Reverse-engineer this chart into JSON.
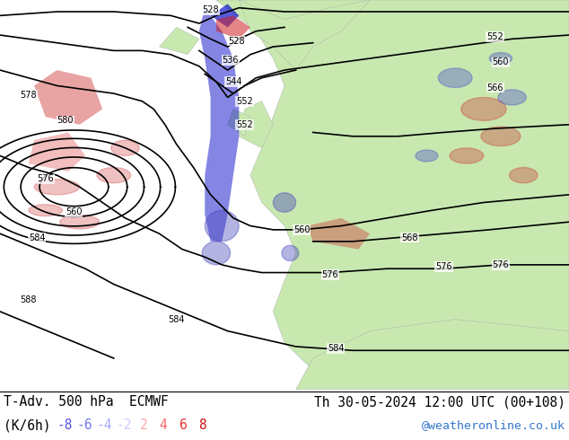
{
  "title_left": "T-Adv. 500 hPa  ECMWF",
  "title_right": "Th 30-05-2024 12:00 UTC (00+108)",
  "subtitle_left": "(K/6h)",
  "legend_values": [
    "-8",
    "-6",
    "-4",
    "-2",
    "2",
    "4",
    "6",
    "8"
  ],
  "legend_colors": [
    "#5555dd",
    "#7777ee",
    "#aaaaff",
    "#ccccff",
    "#ffaaaa",
    "#ff6666",
    "#ee3333",
    "#cc1111"
  ],
  "watermark": "@weatheronline.co.uk",
  "watermark_color": "#3377cc",
  "bg_color": "#ffffff",
  "ocean_color": "#d8d8d8",
  "land_color": "#c8e8b0",
  "title_fontsize": 10.5,
  "subtitle_fontsize": 10.5,
  "legend_fontsize": 10.5,
  "watermark_fontsize": 9.5,
  "fig_width": 6.34,
  "fig_height": 4.9,
  "dpi": 100,
  "contour_lw": 1.2,
  "label_fontsize": 7
}
